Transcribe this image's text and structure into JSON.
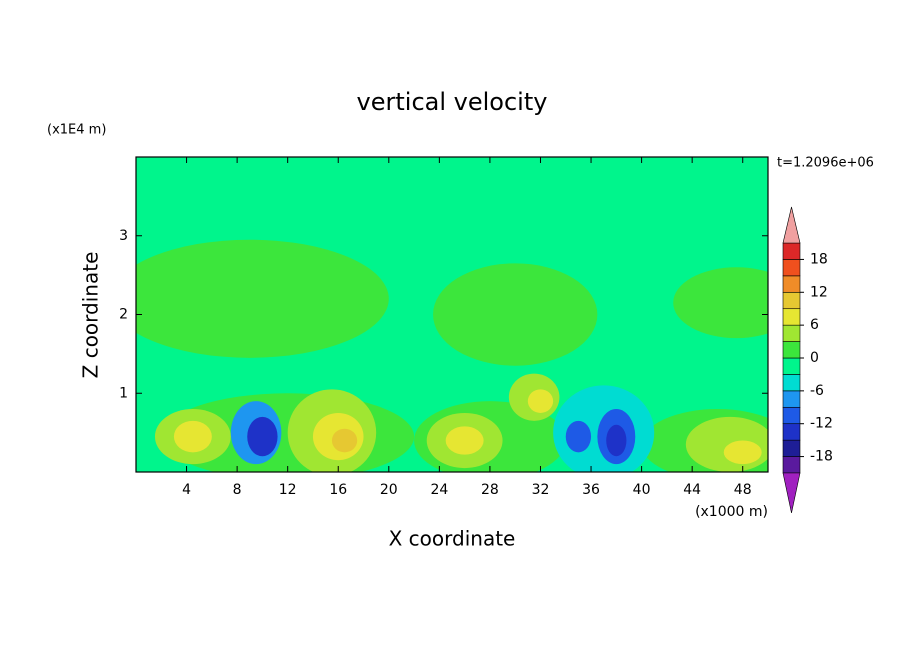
{
  "chart_data": {
    "type": "contour",
    "title": "vertical velocity",
    "x_label": "X coordinate",
    "y_label": "Z coordinate",
    "x_unit": "(x1000 m)",
    "y_unit": "(x1E4 m)",
    "annotation": "t=1.2096e+06",
    "xlim": [
      0,
      50
    ],
    "xticks": [
      4,
      8,
      12,
      16,
      20,
      24,
      28,
      32,
      36,
      40,
      44,
      48
    ],
    "ylim": [
      0,
      4
    ],
    "yticks": [
      1,
      2,
      3
    ],
    "levels": [
      -21,
      -18,
      -15,
      -12,
      -9,
      -6,
      -3,
      0,
      3,
      6,
      9,
      12,
      15,
      18,
      21
    ],
    "colors": [
      "#5a1a9e",
      "#1e1e96",
      "#1e32c8",
      "#1e5ae6",
      "#1e96f0",
      "#00dcd2",
      "#00f58c",
      "#3ce63c",
      "#a0e632",
      "#e6e632",
      "#e6c832",
      "#f08c28",
      "#f0501e",
      "#dc2828"
    ],
    "under_color": "#a020c0",
    "over_color": "#f0a0a0",
    "colorbar_ticks": [
      -18,
      -12,
      -6,
      0,
      6,
      12,
      18
    ],
    "background": -1,
    "features": [
      {
        "x": 9,
        "z": 2.2,
        "dx": 11,
        "dz": 0.75,
        "value": 1
      },
      {
        "x": 30,
        "z": 2.0,
        "dx": 6.5,
        "dz": 0.65,
        "value": 1
      },
      {
        "x": 47.5,
        "z": 2.15,
        "dx": 5,
        "dz": 0.45,
        "value": 1
      },
      {
        "x": 12,
        "z": 0.45,
        "dx": 10,
        "dz": 0.55,
        "value": 1
      },
      {
        "x": 28,
        "z": 0.4,
        "dx": 6,
        "dz": 0.5,
        "value": 1
      },
      {
        "x": 46,
        "z": 0.35,
        "dx": 6,
        "dz": 0.45,
        "value": 1
      },
      {
        "x": 4.5,
        "z": 0.45,
        "dx": 3,
        "dz": 0.35,
        "value": 4
      },
      {
        "x": 4.5,
        "z": 0.45,
        "dx": 1.5,
        "dz": 0.2,
        "value": 7
      },
      {
        "x": 9.5,
        "z": 0.5,
        "dx": 2,
        "dz": 0.4,
        "value": -7
      },
      {
        "x": 10,
        "z": 0.45,
        "dx": 1.2,
        "dz": 0.25,
        "value": -13
      },
      {
        "x": 15.5,
        "z": 0.5,
        "dx": 3.5,
        "dz": 0.55,
        "value": 4
      },
      {
        "x": 16,
        "z": 0.45,
        "dx": 2,
        "dz": 0.3,
        "value": 7
      },
      {
        "x": 16.5,
        "z": 0.4,
        "dx": 1,
        "dz": 0.15,
        "value": 10
      },
      {
        "x": 26,
        "z": 0.4,
        "dx": 3,
        "dz": 0.35,
        "value": 4
      },
      {
        "x": 26,
        "z": 0.4,
        "dx": 1.5,
        "dz": 0.18,
        "value": 7
      },
      {
        "x": 31.5,
        "z": 0.95,
        "dx": 2,
        "dz": 0.3,
        "value": 4
      },
      {
        "x": 32,
        "z": 0.9,
        "dx": 1,
        "dz": 0.15,
        "value": 7
      },
      {
        "x": 37,
        "z": 0.5,
        "dx": 4,
        "dz": 0.6,
        "value": -4
      },
      {
        "x": 38,
        "z": 0.45,
        "dx": 1.5,
        "dz": 0.35,
        "value": -10
      },
      {
        "x": 35,
        "z": 0.45,
        "dx": 1,
        "dz": 0.2,
        "value": -10
      },
      {
        "x": 38,
        "z": 0.4,
        "dx": 0.8,
        "dz": 0.2,
        "value": -13
      },
      {
        "x": 47,
        "z": 0.35,
        "dx": 3.5,
        "dz": 0.35,
        "value": 4
      },
      {
        "x": 48,
        "z": 0.25,
        "dx": 1.5,
        "dz": 0.15,
        "value": 7
      }
    ]
  }
}
